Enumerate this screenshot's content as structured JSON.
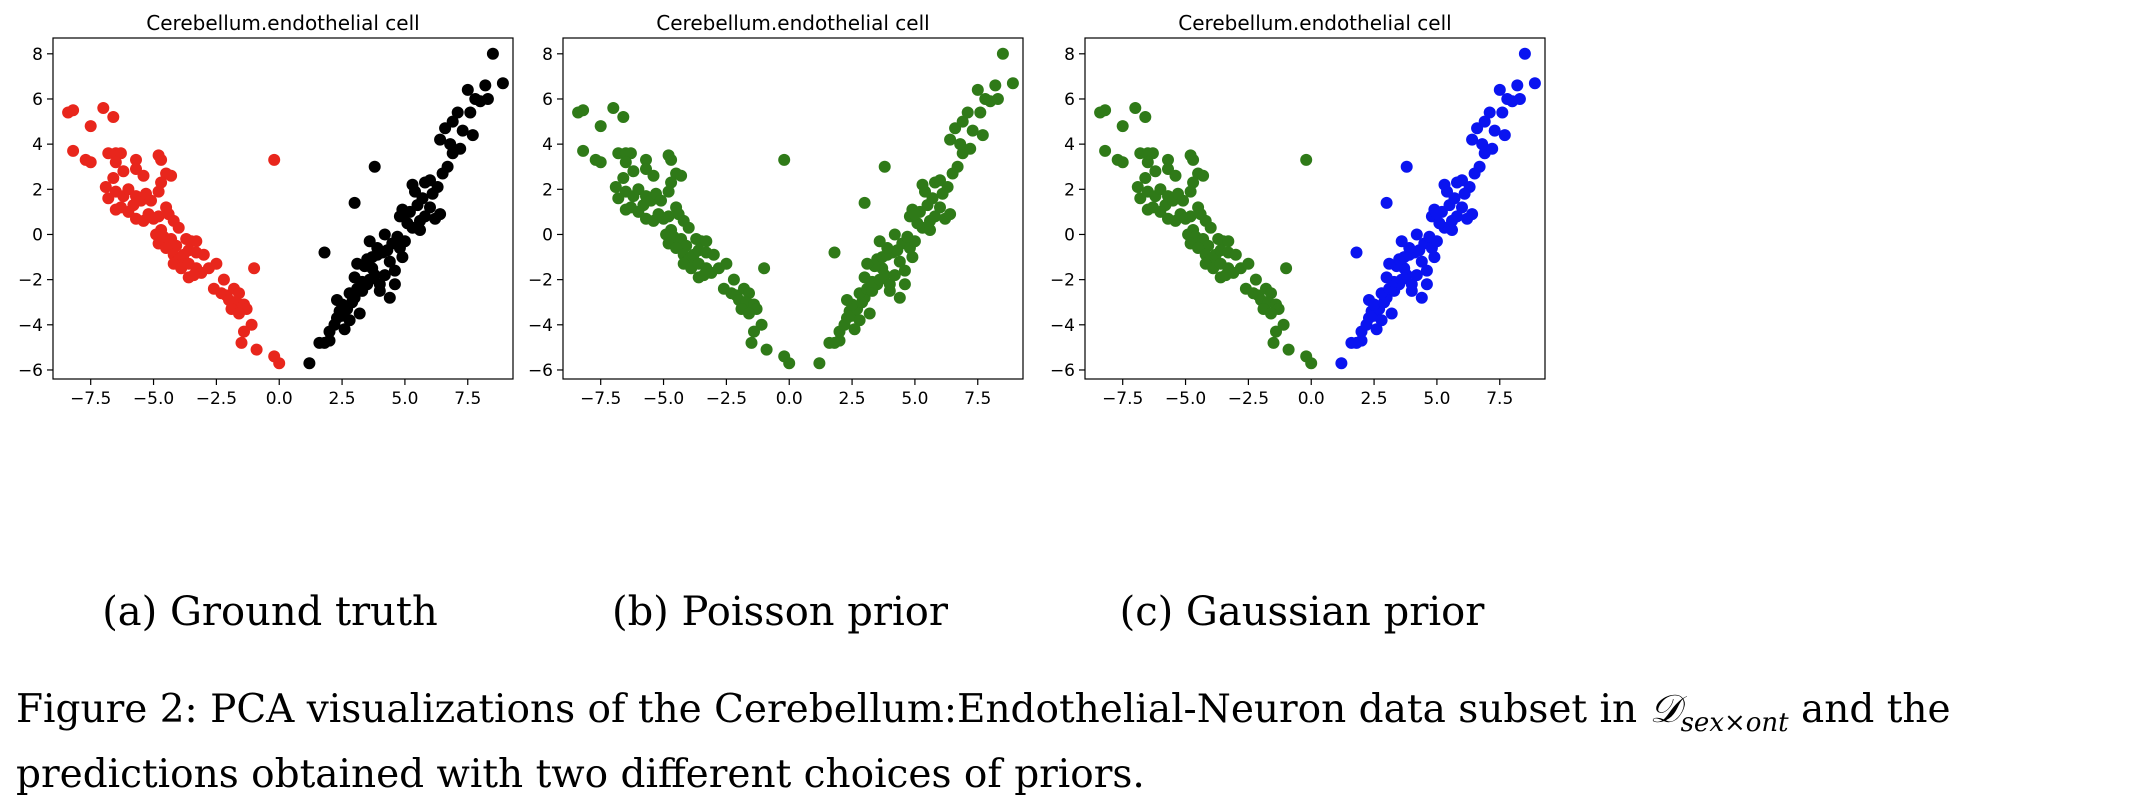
{
  "chart_data": [
    {
      "type": "scatter",
      "panel": "a",
      "title": "Cerebellum.endothelial cell",
      "subcaption": "(a) Ground truth",
      "xlim": [
        -9.0,
        9.3
      ],
      "ylim": [
        -6.4,
        8.7
      ],
      "xticks": [
        -7.5,
        -5.0,
        -2.5,
        0.0,
        2.5,
        5.0,
        7.5
      ],
      "xtick_labels": [
        "−7.5",
        "−5.0",
        "−2.5",
        "0.0",
        "2.5",
        "5.0",
        "7.5"
      ],
      "yticks": [
        -6,
        -4,
        -2,
        0,
        2,
        4,
        6,
        8
      ],
      "ytick_labels": [
        "−6",
        "−4",
        "−2",
        "0",
        "2",
        "4",
        "6",
        "8"
      ],
      "grid": false,
      "series": [
        {
          "group": "left",
          "color": "#e8261c"
        },
        {
          "group": "right",
          "color": "#000000"
        }
      ]
    },
    {
      "type": "scatter",
      "panel": "b",
      "title": "Cerebellum.endothelial cell",
      "subcaption": "(b) Poisson prior",
      "xlim": [
        -9.0,
        9.3
      ],
      "ylim": [
        -6.4,
        8.7
      ],
      "xticks": [
        -7.5,
        -5.0,
        -2.5,
        0.0,
        2.5,
        5.0,
        7.5
      ],
      "xtick_labels": [
        "−7.5",
        "−5.0",
        "−2.5",
        "0.0",
        "2.5",
        "5.0",
        "7.5"
      ],
      "yticks": [
        -6,
        -4,
        -2,
        0,
        2,
        4,
        6,
        8
      ],
      "ytick_labels": [
        "−6",
        "−4",
        "−2",
        "0",
        "2",
        "4",
        "6",
        "8"
      ],
      "grid": false,
      "series": [
        {
          "group": "left",
          "color": "#2f7a18"
        },
        {
          "group": "right",
          "color": "#2f7a18"
        }
      ]
    },
    {
      "type": "scatter",
      "panel": "c",
      "title": "Cerebellum.endothelial cell",
      "subcaption": "(c) Gaussian prior",
      "xlim": [
        -9.0,
        9.3
      ],
      "ylim": [
        -6.4,
        8.7
      ],
      "xticks": [
        -7.5,
        -5.0,
        -2.5,
        0.0,
        2.5,
        5.0,
        7.5
      ],
      "xtick_labels": [
        "−7.5",
        "−5.0",
        "−2.5",
        "0.0",
        "2.5",
        "5.0",
        "7.5"
      ],
      "yticks": [
        -6,
        -4,
        -2,
        0,
        2,
        4,
        6,
        8
      ],
      "ytick_labels": [
        "−6",
        "−4",
        "−2",
        "0",
        "2",
        "4",
        "6",
        "8"
      ],
      "grid": false,
      "series": [
        {
          "group": "left",
          "color": "#2f7a18"
        },
        {
          "group": "right",
          "color": "#0a14f0"
        }
      ]
    }
  ],
  "points": {
    "left": [
      [
        -8.4,
        5.4
      ],
      [
        -8.2,
        5.5
      ],
      [
        -8.2,
        3.7
      ],
      [
        -7.0,
        5.6
      ],
      [
        -7.5,
        4.8
      ],
      [
        -6.6,
        5.2
      ],
      [
        -7.5,
        3.2
      ],
      [
        -7.7,
        3.3
      ],
      [
        -6.8,
        3.6
      ],
      [
        -6.5,
        3.6
      ],
      [
        -6.3,
        3.6
      ],
      [
        -6.5,
        3.2
      ],
      [
        -6.2,
        2.8
      ],
      [
        -5.7,
        3.3
      ],
      [
        -5.7,
        2.9
      ],
      [
        -5.4,
        2.6
      ],
      [
        -4.8,
        3.5
      ],
      [
        -4.7,
        3.3
      ],
      [
        -4.5,
        2.7
      ],
      [
        -4.3,
        2.6
      ],
      [
        -4.7,
        2.3
      ],
      [
        -4.8,
        1.9
      ],
      [
        -4.5,
        1.2
      ],
      [
        -6.6,
        2.5
      ],
      [
        -6.9,
        2.1
      ],
      [
        -6.5,
        1.9
      ],
      [
        -6.8,
        1.6
      ],
      [
        -6.2,
        1.7
      ],
      [
        -6.0,
        2.0
      ],
      [
        -5.8,
        1.3
      ],
      [
        -5.7,
        1.7
      ],
      [
        -5.5,
        1.5
      ],
      [
        -5.3,
        1.8
      ],
      [
        -5.1,
        1.5
      ],
      [
        -6.5,
        1.1
      ],
      [
        -6.3,
        1.2
      ],
      [
        -6.0,
        1.0
      ],
      [
        -5.7,
        0.7
      ],
      [
        -5.4,
        0.6
      ],
      [
        -5.2,
        0.9
      ],
      [
        -5.0,
        0.7
      ],
      [
        -4.8,
        0.8
      ],
      [
        -4.4,
        0.9
      ],
      [
        -4.2,
        0.6
      ],
      [
        -4.0,
        0.3
      ],
      [
        -4.7,
        0.2
      ],
      [
        -4.9,
        0.0
      ],
      [
        -4.6,
        -0.1
      ],
      [
        -4.3,
        -0.2
      ],
      [
        -4.1,
        -0.5
      ],
      [
        -3.7,
        -0.2
      ],
      [
        -3.5,
        -0.3
      ],
      [
        -3.3,
        -0.3
      ],
      [
        -4.8,
        -0.4
      ],
      [
        -4.5,
        -0.6
      ],
      [
        -4.2,
        -0.9
      ],
      [
        -4.0,
        -1.1
      ],
      [
        -3.8,
        -0.9
      ],
      [
        -3.6,
        -0.7
      ],
      [
        -3.3,
        -0.8
      ],
      [
        -3.0,
        -0.9
      ],
      [
        -4.2,
        -1.3
      ],
      [
        -3.9,
        -1.5
      ],
      [
        -3.6,
        -1.3
      ],
      [
        -3.3,
        -1.5
      ],
      [
        -3.1,
        -1.7
      ],
      [
        -3.6,
        -1.9
      ],
      [
        -3.4,
        -1.8
      ],
      [
        -2.8,
        -1.5
      ],
      [
        -2.5,
        -1.3
      ],
      [
        -2.2,
        -2.0
      ],
      [
        -2.6,
        -2.4
      ],
      [
        -2.3,
        -2.6
      ],
      [
        -2.1,
        -2.7
      ],
      [
        -1.8,
        -2.4
      ],
      [
        -1.6,
        -2.6
      ],
      [
        -2.0,
        -2.9
      ],
      [
        -1.7,
        -3.0
      ],
      [
        -1.4,
        -3.1
      ],
      [
        -1.3,
        -3.3
      ],
      [
        -1.9,
        -3.3
      ],
      [
        -1.6,
        -3.5
      ],
      [
        -1.0,
        -1.5
      ],
      [
        -1.1,
        -4.0
      ],
      [
        -1.4,
        -4.3
      ],
      [
        -1.5,
        -4.8
      ],
      [
        -0.9,
        -5.1
      ],
      [
        -0.2,
        -5.4
      ],
      [
        -0.2,
        3.3
      ],
      [
        0.0,
        -5.7
      ]
    ],
    "right": [
      [
        1.2,
        -5.7
      ],
      [
        1.6,
        -4.8
      ],
      [
        1.8,
        -4.8
      ],
      [
        2.0,
        -4.7
      ],
      [
        2.0,
        -4.3
      ],
      [
        2.2,
        -4.0
      ],
      [
        2.3,
        -3.7
      ],
      [
        2.4,
        -3.4
      ],
      [
        2.5,
        -3.6
      ],
      [
        2.7,
        -3.3
      ],
      [
        2.5,
        -3.1
      ],
      [
        2.9,
        -3.0
      ],
      [
        3.0,
        -2.8
      ],
      [
        2.8,
        -2.6
      ],
      [
        3.1,
        -2.4
      ],
      [
        3.3,
        -2.5
      ],
      [
        3.5,
        -2.2
      ],
      [
        3.3,
        -2.1
      ],
      [
        3.6,
        -2.0
      ],
      [
        3.8,
        -1.8
      ],
      [
        4.0,
        -2.2
      ],
      [
        3.7,
        -1.5
      ],
      [
        3.4,
        -1.4
      ],
      [
        3.1,
        -1.3
      ],
      [
        3.5,
        -1.1
      ],
      [
        3.7,
        -1.0
      ],
      [
        3.9,
        -0.9
      ],
      [
        4.1,
        -0.8
      ],
      [
        4.3,
        -0.7
      ],
      [
        4.4,
        -1.2
      ],
      [
        4.6,
        -1.6
      ],
      [
        4.2,
        -1.8
      ],
      [
        4.0,
        -2.5
      ],
      [
        3.9,
        -0.6
      ],
      [
        4.5,
        -0.4
      ],
      [
        4.8,
        -0.6
      ],
      [
        5.0,
        -0.3
      ],
      [
        5.3,
        0.3
      ],
      [
        5.1,
        0.5
      ],
      [
        4.8,
        0.8
      ],
      [
        4.9,
        1.1
      ],
      [
        5.2,
        1.0
      ],
      [
        5.5,
        1.3
      ],
      [
        5.7,
        1.6
      ],
      [
        5.4,
        1.9
      ],
      [
        5.8,
        2.3
      ],
      [
        6.0,
        2.4
      ],
      [
        6.3,
        2.1
      ],
      [
        6.1,
        1.8
      ],
      [
        6.5,
        2.7
      ],
      [
        6.7,
        3.0
      ],
      [
        6.9,
        3.6
      ],
      [
        7.2,
        3.8
      ],
      [
        6.4,
        4.2
      ],
      [
        6.6,
        4.7
      ],
      [
        6.9,
        5.0
      ],
      [
        7.1,
        5.4
      ],
      [
        7.6,
        5.4
      ],
      [
        7.8,
        6.0
      ],
      [
        7.5,
        6.4
      ],
      [
        8.0,
        5.9
      ],
      [
        8.3,
        6.0
      ],
      [
        8.2,
        6.6
      ],
      [
        8.9,
        6.7
      ],
      [
        8.5,
        8.0
      ],
      [
        5.8,
        0.8
      ],
      [
        6.0,
        1.2
      ],
      [
        6.2,
        0.7
      ],
      [
        5.6,
        0.2
      ],
      [
        4.2,
        0.0
      ],
      [
        3.6,
        -0.3
      ],
      [
        4.7,
        -0.1
      ],
      [
        3.0,
        1.4
      ],
      [
        3.8,
        3.0
      ],
      [
        1.8,
        -0.8
      ],
      [
        2.3,
        -2.9
      ],
      [
        4.6,
        -2.2
      ],
      [
        5.0,
        0.9
      ],
      [
        6.4,
        0.9
      ],
      [
        5.3,
        2.2
      ],
      [
        7.3,
        4.6
      ],
      [
        7.7,
        4.4
      ],
      [
        2.8,
        -3.8
      ],
      [
        3.2,
        -3.5
      ],
      [
        2.6,
        -4.2
      ],
      [
        4.4,
        -2.8
      ],
      [
        3.0,
        -1.9
      ],
      [
        4.9,
        -1.0
      ],
      [
        5.6,
        0.6
      ],
      [
        6.8,
        4.0
      ]
    ]
  },
  "caption": {
    "prefix": "Figure 2: PCA visualizations of the Cerebellum:Endothelial-Neuron data subset in ",
    "math": "𝒟",
    "subscript": "sex×ont",
    "suffix": " and the",
    "line2": "predictions obtained with two different choices of priors."
  }
}
